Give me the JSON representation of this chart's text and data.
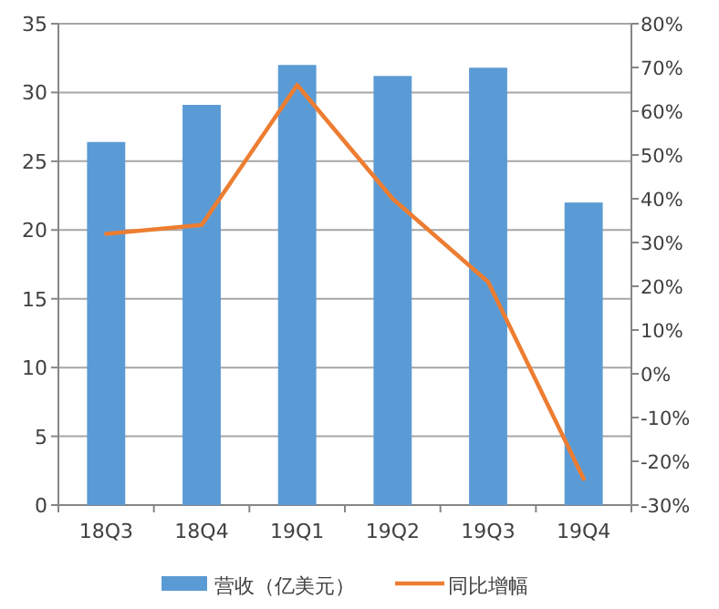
{
  "chart_data": {
    "type": "bar",
    "categories": [
      "18Q3",
      "18Q4",
      "19Q1",
      "19Q2",
      "19Q3",
      "19Q4"
    ],
    "series": [
      {
        "name": "营收（亿美元）",
        "color": "#5b9bd5",
        "values": [
          26.4,
          29.1,
          32.0,
          31.2,
          31.8,
          22.0
        ]
      },
      {
        "name": "同比增幅",
        "type": "line",
        "axis": "y2",
        "color": "#ed7d31",
        "values": [
          32,
          34,
          66,
          40,
          21,
          -24
        ]
      }
    ],
    "ylim": [
      0,
      35
    ],
    "yticks": [
      0,
      5,
      10,
      15,
      20,
      25,
      30,
      35
    ],
    "y2lim": [
      -30,
      80
    ],
    "y2ticks": [
      {
        "value": -30,
        "label": "-30%"
      },
      {
        "value": -20,
        "label": "-20%"
      },
      {
        "value": -10,
        "label": "-10%"
      },
      {
        "value": 0,
        "label": "0%"
      },
      {
        "value": 10,
        "label": "10%"
      },
      {
        "value": 20,
        "label": "20%"
      },
      {
        "value": 30,
        "label": "30%"
      },
      {
        "value": 40,
        "label": "40%"
      },
      {
        "value": 50,
        "label": "50%"
      },
      {
        "value": 60,
        "label": "60%"
      },
      {
        "value": 70,
        "label": "70%"
      },
      {
        "value": 80,
        "label": "80%"
      }
    ],
    "grid": "y",
    "legend": "bottom",
    "marker": "none",
    "line_style": "solid"
  }
}
